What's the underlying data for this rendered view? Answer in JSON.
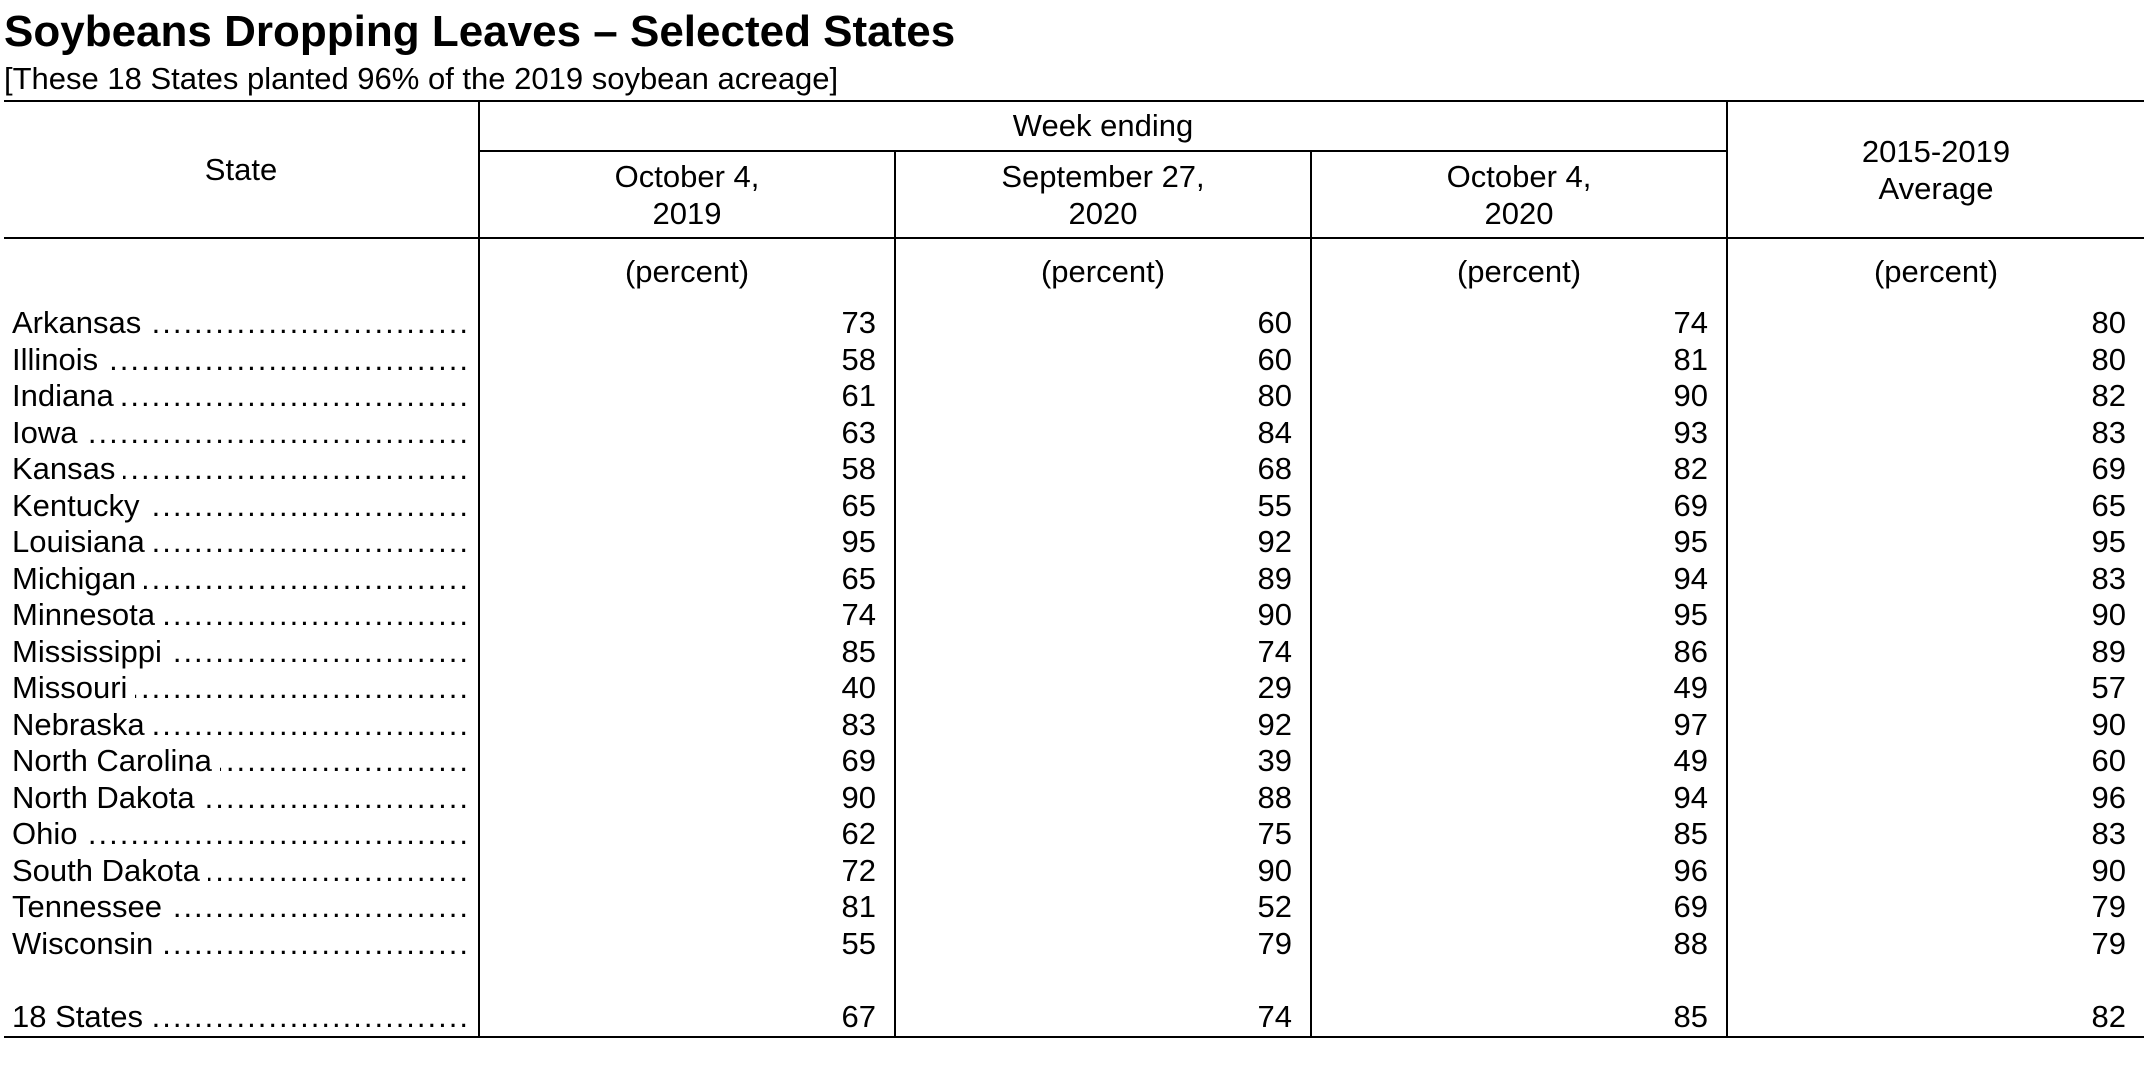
{
  "title": "Soybeans Dropping Leaves – Selected States",
  "subtitle": "[These 18 States planted 96% of the 2019 soybean acreage]",
  "header": {
    "state": "State",
    "week_ending": "Week ending",
    "col1": "October 4,\n2019",
    "col2": "September 27,\n2020",
    "col3": "October 4,\n2020",
    "col4": "2015-2019\nAverage",
    "unit": "(percent)"
  },
  "rows": [
    {
      "state": "Arkansas",
      "v": [
        "73",
        "60",
        "74",
        "80"
      ]
    },
    {
      "state": "Illinois",
      "v": [
        "58",
        "60",
        "81",
        "80"
      ]
    },
    {
      "state": "Indiana",
      "v": [
        "61",
        "80",
        "90",
        "82"
      ]
    },
    {
      "state": "Iowa",
      "v": [
        "63",
        "84",
        "93",
        "83"
      ]
    },
    {
      "state": "Kansas",
      "v": [
        "58",
        "68",
        "82",
        "69"
      ]
    },
    {
      "state": "Kentucky",
      "v": [
        "65",
        "55",
        "69",
        "65"
      ]
    },
    {
      "state": "Louisiana",
      "v": [
        "95",
        "92",
        "95",
        "95"
      ]
    },
    {
      "state": "Michigan",
      "v": [
        "65",
        "89",
        "94",
        "83"
      ]
    },
    {
      "state": "Minnesota",
      "v": [
        "74",
        "90",
        "95",
        "90"
      ]
    },
    {
      "state": "Mississippi",
      "v": [
        "85",
        "74",
        "86",
        "89"
      ]
    },
    {
      "state": "Missouri",
      "v": [
        "40",
        "29",
        "49",
        "57"
      ]
    },
    {
      "state": "Nebraska",
      "v": [
        "83",
        "92",
        "97",
        "90"
      ]
    },
    {
      "state": "North Carolina",
      "v": [
        "69",
        "39",
        "49",
        "60"
      ]
    },
    {
      "state": "North Dakota",
      "v": [
        "90",
        "88",
        "94",
        "96"
      ]
    },
    {
      "state": "Ohio",
      "v": [
        "62",
        "75",
        "85",
        "83"
      ]
    },
    {
      "state": "South Dakota",
      "v": [
        "72",
        "90",
        "96",
        "90"
      ]
    },
    {
      "state": "Tennessee",
      "v": [
        "81",
        "52",
        "69",
        "79"
      ]
    },
    {
      "state": "Wisconsin",
      "v": [
        "55",
        "79",
        "88",
        "79"
      ]
    }
  ],
  "total": {
    "state": "18 States",
    "v": [
      "67",
      "74",
      "85",
      "82"
    ]
  }
}
